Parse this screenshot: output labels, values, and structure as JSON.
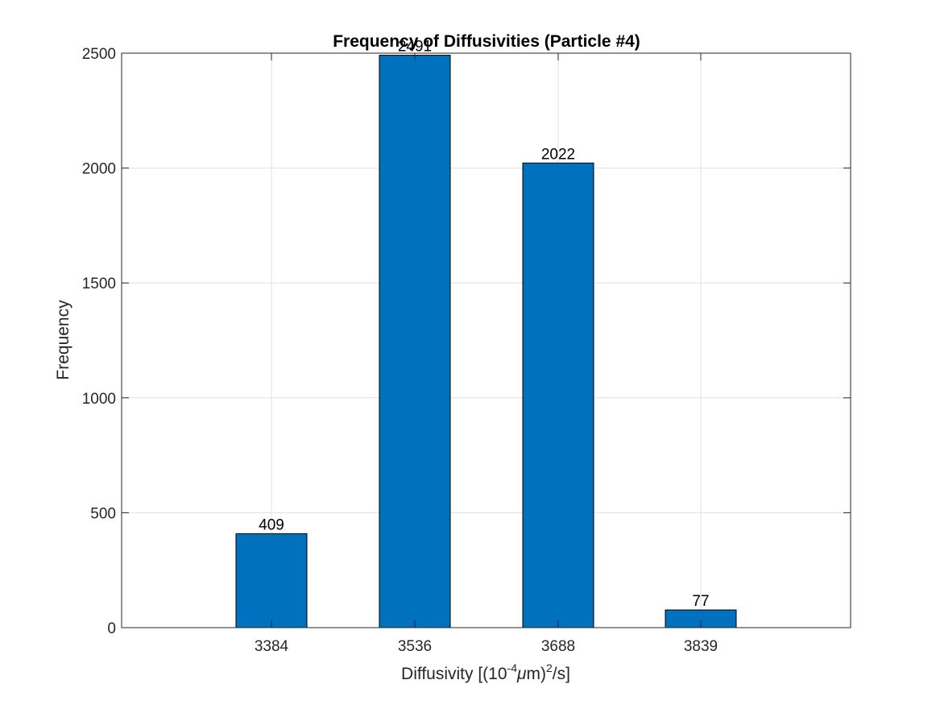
{
  "chart_data": {
    "type": "bar",
    "title": "Frequency of Diffusivities (Particle #4)",
    "xlabel": "Diffusivity [(10^-4 μm)^2/s]",
    "xlabel_parts": {
      "prefix": "Diffusivity [(10",
      "sup1": "-4",
      "mu": "μ",
      "middle": "m)",
      "sup2": "2",
      "suffix": "/s]"
    },
    "ylabel": "Frequency",
    "categories": [
      "3384",
      "3536",
      "3688",
      "3839"
    ],
    "values": [
      409,
      2491,
      2022,
      77
    ],
    "data_labels": [
      "409",
      "2491",
      "2022",
      "77"
    ],
    "ylim": [
      0,
      2500
    ],
    "yticks": [
      0,
      500,
      1000,
      1500,
      2000,
      2500
    ],
    "ytick_labels": [
      "0",
      "500",
      "1000",
      "1500",
      "2000",
      "2500"
    ],
    "grid": true,
    "colors": {
      "bar": "#0072BD",
      "bar_edge": "#000000",
      "grid": "#e0e0e0",
      "axis": "#262626"
    }
  }
}
